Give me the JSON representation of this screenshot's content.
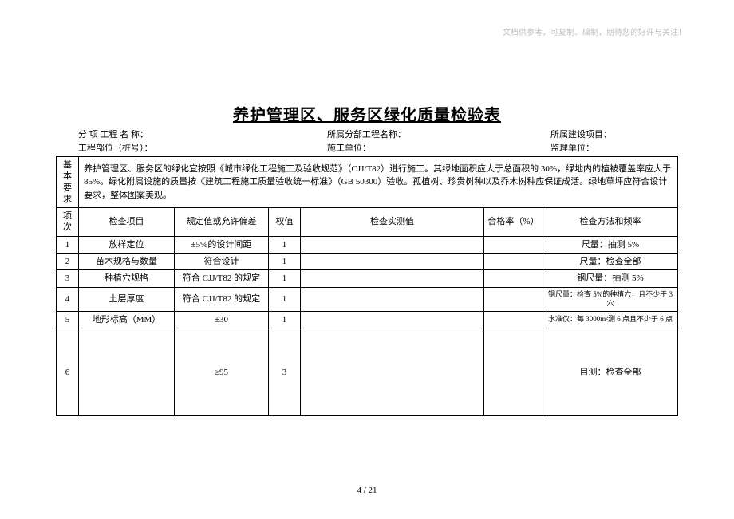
{
  "topNote": "文档供参考，可复制、编制，期待您的好评与关注！",
  "title": "养护管理区、服务区绿化质量检验表",
  "meta": {
    "r1c1": "分 项 工程 名 称：",
    "r1c2": "所属分部工程名称：",
    "r1c3": "所属建设项目：",
    "r2c1": "工程部位（桩号）：",
    "r2c2": "施工单位：",
    "r2c3": "监理单位："
  },
  "basic": {
    "label": "基本要求",
    "text": "养护管理区、服务区的绿化宜按照《城市绿化工程施工及验收规范》（CJJ/T82）进行施工。其绿地面积应大于总面积的 30%，绿地内的植被覆盖率应大于 85%。绿化附属设施的质量按《建筑工程施工质量验收统一标准》（GB 50300）验收。孤植树、珍贵树种以及乔木树种应保证成活。绿地草坪应符合设计要求，整体图案美观。"
  },
  "headers": {
    "seq": "项次",
    "item": "检查项目",
    "spec": "规定值或允许偏差",
    "weight": "权值",
    "meas": "检查实测值",
    "rate": "合格率（%）",
    "method": "检查方法和频率"
  },
  "rows": [
    {
      "seq": "1",
      "item": "放样定位",
      "spec": "±5%的设计间距",
      "weight": "1",
      "meas": "",
      "rate": "",
      "method": "尺量：抽测 5%"
    },
    {
      "seq": "2",
      "item": "苗木规格与数量",
      "spec": "符合设计",
      "weight": "1",
      "meas": "",
      "rate": "",
      "method": "尺量：检查全部"
    },
    {
      "seq": "3",
      "item": "种植穴规格",
      "spec": "符合 CJJ/T82 的规定",
      "weight": "1",
      "meas": "",
      "rate": "",
      "method": "钢尺量：抽测 5%"
    },
    {
      "seq": "4",
      "item": "土层厚度",
      "spec": "符合 CJJ/T82 的规定",
      "weight": "1",
      "meas": "",
      "rate": "",
      "method": "钢尺量：检查 5%的种植穴，且不少于 3 穴",
      "methodSmall": true
    },
    {
      "seq": "5",
      "item": "地形标高（MM）",
      "spec": "±30",
      "weight": "1",
      "meas": "",
      "rate": "",
      "method": "水准仪：每 3000m²测 6 点且不少于 6 点",
      "methodSmall": true
    },
    {
      "seq": "6",
      "item": "",
      "spec": "≥95",
      "weight": "3",
      "meas": "",
      "rate": "",
      "method": "目测：检查全部",
      "tall": true
    }
  ],
  "pageNum": "4 / 21"
}
